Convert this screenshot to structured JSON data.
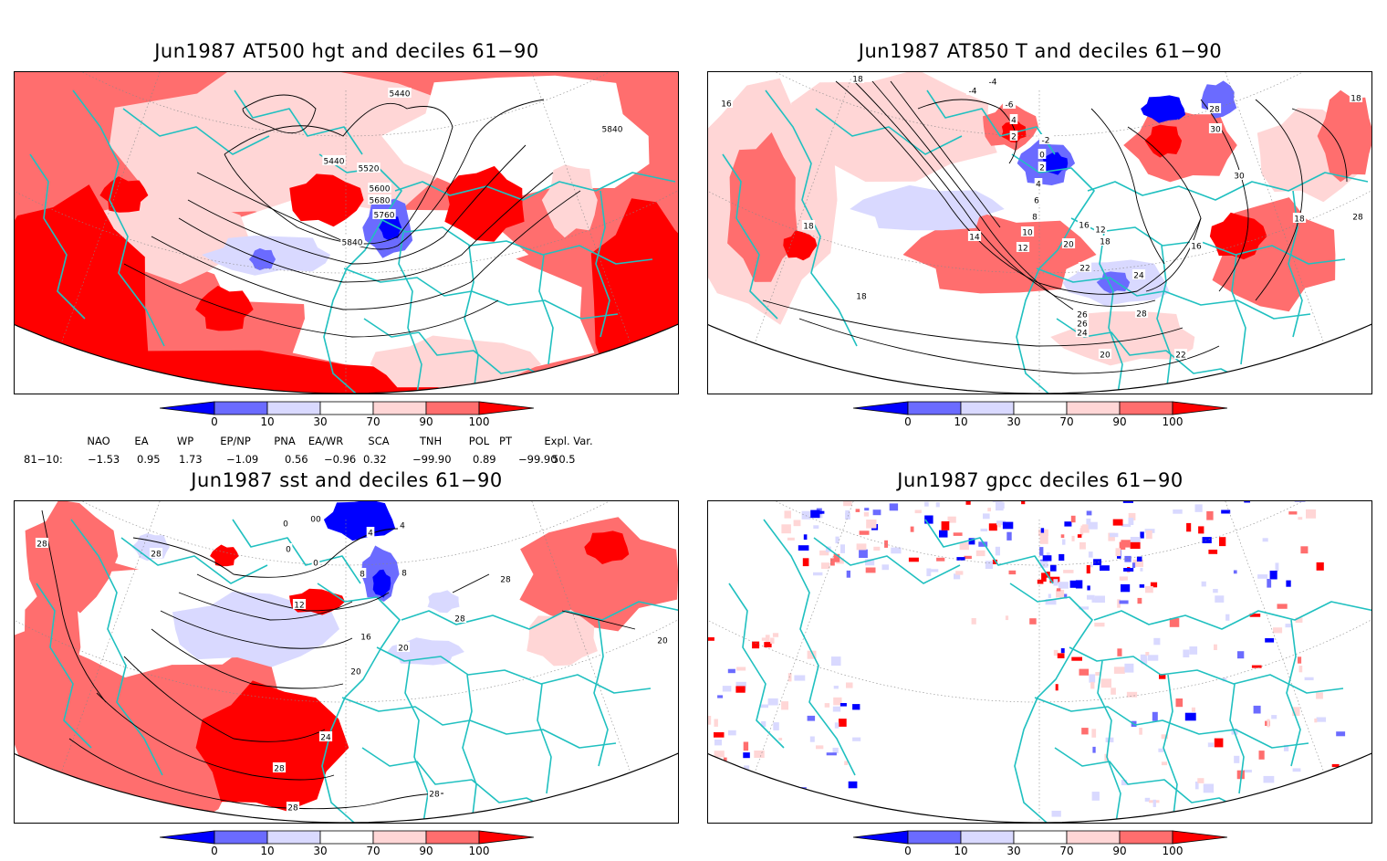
{
  "panels": [
    {
      "id": "p1",
      "title": "Jun1987 AT500 hgt and deciles 61−90",
      "contour_labels": [
        "5440",
        "5440",
        "5520",
        "5600",
        "5680",
        "5760",
        "5840",
        "5840"
      ]
    },
    {
      "id": "p2",
      "title": "Jun1987 AT850 T and deciles 61−90",
      "contour_labels": [
        "18",
        "16",
        "18",
        "-4",
        "-4",
        "-6",
        "4",
        "2",
        "-2",
        "0",
        "2",
        "4",
        "6",
        "8",
        "10",
        "12",
        "14",
        "16",
        "12",
        "18",
        "20",
        "22",
        "24",
        "28",
        "26",
        "26",
        "24",
        "22",
        "20",
        "18",
        "16",
        "28",
        "30",
        "30",
        "18",
        "18",
        "28"
      ]
    },
    {
      "id": "p3",
      "title": "Jun1987 sst and deciles 61−90",
      "contour_labels": [
        "28",
        "28",
        "0",
        "00",
        "0",
        "4",
        "0",
        "4",
        "8",
        "8",
        "12",
        "16",
        "20",
        "20",
        "24",
        "28",
        "28",
        "28",
        "28",
        "20",
        "28"
      ]
    },
    {
      "id": "p4",
      "title": "Jun1987 gpcc deciles 61−90",
      "contour_labels": []
    }
  ],
  "colorbar": {
    "tick_labels": [
      "0",
      "10",
      "30",
      "70",
      "90",
      "100"
    ],
    "colors": [
      "#0000ff",
      "#6b6bff",
      "#d9d9ff",
      "#ffffff",
      "#ffd6d6",
      "#ff6e6e",
      "#ff0000"
    ]
  },
  "indices": {
    "headers": [
      "NAO",
      "EA",
      "WP",
      "EP/NP",
      "PNA",
      "EA/WR",
      "SCA",
      "TNH",
      "POL",
      "PT",
      "Expl. Var."
    ],
    "row_label": "81−10:",
    "values": [
      "−1.53",
      "0.95",
      "1.73",
      "−1.09",
      "0.56",
      "−0.96",
      "0.32",
      "−99.90",
      "0.89",
      "−99.90",
      "50.5"
    ]
  },
  "colors": {
    "coastline": "#20c0c0",
    "frame": "#000000",
    "contour": "#000000"
  }
}
